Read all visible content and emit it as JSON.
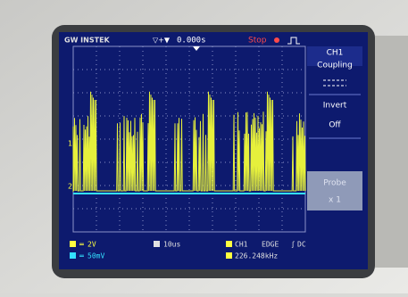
{
  "header": {
    "brand": "GW INSTEK",
    "time_offset": "0.000s",
    "state": "Stop"
  },
  "menu": {
    "channel": "CH1",
    "items": [
      {
        "label": "Coupling"
      },
      {
        "label": "Invert",
        "value": "Off"
      },
      {
        "label": "Probe",
        "value": "x 1"
      }
    ]
  },
  "markers": [
    "1",
    "2"
  ],
  "status": {
    "ch1_scale": "2V",
    "ch2_scale": "50mV",
    "timebase": "10us",
    "trigger_source": "CH1",
    "trigger_type": "EDGE",
    "trigger_coupling": "DC",
    "frequency": "226.248kHz"
  }
}
